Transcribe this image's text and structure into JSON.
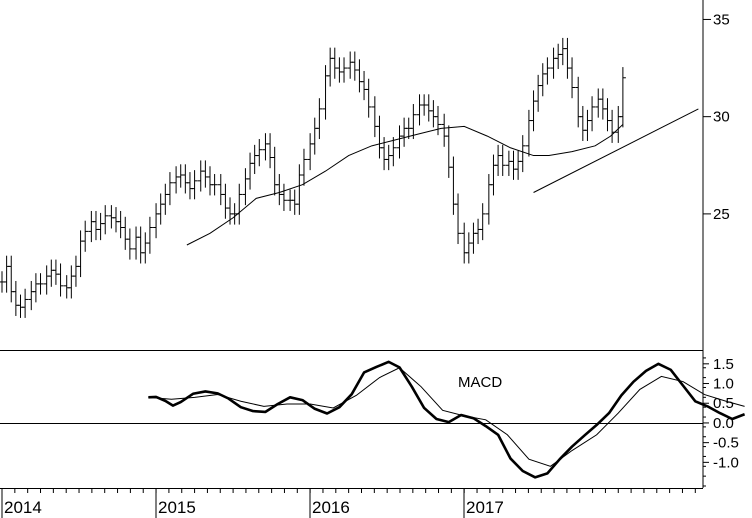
{
  "chart_data": [
    {
      "type": "ohlc",
      "panel": "price",
      "title": "",
      "xlabel": "",
      "ylabel": "",
      "ylim": [
        18,
        36
      ],
      "yticks": [
        25,
        30,
        35
      ],
      "x_range": [
        "2014-01",
        "2017-07"
      ],
      "x_ticks": [
        {
          "label": "2014",
          "date": 2014.0
        },
        {
          "label": "2015",
          "date": 2015.0
        },
        {
          "label": "2016",
          "date": 2016.0
        },
        {
          "label": "2017",
          "date": 2017.0
        }
      ],
      "series": [
        {
          "kind": "price_bars",
          "points": [
            [
              2014.0,
              21.5
            ],
            [
              2014.03,
              22.3
            ],
            [
              2014.06,
              21.0
            ],
            [
              2014.09,
              20.3
            ],
            [
              2014.12,
              20.2
            ],
            [
              2014.15,
              20.6
            ],
            [
              2014.19,
              21.0
            ],
            [
              2014.22,
              21.4
            ],
            [
              2014.25,
              21.4
            ],
            [
              2014.29,
              21.8
            ],
            [
              2014.32,
              22.1
            ],
            [
              2014.35,
              21.9
            ],
            [
              2014.38,
              21.3
            ],
            [
              2014.42,
              21.2
            ],
            [
              2014.45,
              21.8
            ],
            [
              2014.48,
              22.3
            ],
            [
              2014.51,
              23.6
            ],
            [
              2014.54,
              24.1
            ],
            [
              2014.58,
              24.6
            ],
            [
              2014.61,
              24.2
            ],
            [
              2014.64,
              24.5
            ],
            [
              2014.67,
              24.9
            ],
            [
              2014.71,
              24.8
            ],
            [
              2014.74,
              24.6
            ],
            [
              2014.77,
              24.3
            ],
            [
              2014.8,
              23.7
            ],
            [
              2014.83,
              23.2
            ],
            [
              2014.87,
              23.8
            ],
            [
              2014.9,
              23.0
            ],
            [
              2014.93,
              23.5
            ],
            [
              2014.96,
              24.3
            ],
            [
              2015.0,
              25.0
            ],
            [
              2015.03,
              25.5
            ],
            [
              2015.06,
              26.0
            ],
            [
              2015.09,
              26.6
            ],
            [
              2015.13,
              26.9
            ],
            [
              2015.16,
              27.0
            ],
            [
              2015.19,
              26.6
            ],
            [
              2015.22,
              26.3
            ],
            [
              2015.25,
              26.7
            ],
            [
              2015.29,
              27.2
            ],
            [
              2015.32,
              26.9
            ],
            [
              2015.35,
              26.5
            ],
            [
              2015.38,
              26.5
            ],
            [
              2015.42,
              26.0
            ],
            [
              2015.45,
              25.3
            ],
            [
              2015.48,
              25.0
            ],
            [
              2015.51,
              25.0
            ],
            [
              2015.54,
              26.0
            ],
            [
              2015.58,
              26.8
            ],
            [
              2015.61,
              27.6
            ],
            [
              2015.64,
              28.0
            ],
            [
              2015.67,
              28.3
            ],
            [
              2015.71,
              28.6
            ],
            [
              2015.74,
              27.9
            ],
            [
              2015.77,
              26.5
            ],
            [
              2015.8,
              26.0
            ],
            [
              2015.83,
              25.7
            ],
            [
              2015.87,
              25.7
            ],
            [
              2015.9,
              25.5
            ],
            [
              2015.93,
              27.0
            ],
            [
              2015.96,
              27.8
            ],
            [
              2016.0,
              28.6
            ],
            [
              2016.03,
              29.4
            ],
            [
              2016.06,
              30.4
            ],
            [
              2016.1,
              32.1
            ],
            [
              2016.13,
              33.0
            ],
            [
              2016.16,
              32.5
            ],
            [
              2016.19,
              32.3
            ],
            [
              2016.22,
              32.5
            ],
            [
              2016.26,
              32.8
            ],
            [
              2016.29,
              32.4
            ],
            [
              2016.32,
              31.8
            ],
            [
              2016.35,
              31.4
            ],
            [
              2016.38,
              30.5
            ],
            [
              2016.42,
              29.5
            ],
            [
              2016.45,
              28.4
            ],
            [
              2016.48,
              27.8
            ],
            [
              2016.51,
              28.0
            ],
            [
              2016.54,
              28.4
            ],
            [
              2016.58,
              29.0
            ],
            [
              2016.61,
              29.4
            ],
            [
              2016.64,
              29.4
            ],
            [
              2016.67,
              30.1
            ],
            [
              2016.71,
              30.6
            ],
            [
              2016.74,
              30.6
            ],
            [
              2016.77,
              30.3
            ],
            [
              2016.8,
              30.0
            ],
            [
              2016.83,
              29.6
            ],
            [
              2016.87,
              29.0
            ],
            [
              2016.9,
              27.4
            ],
            [
              2016.93,
              25.5
            ],
            [
              2016.96,
              24.0
            ],
            [
              2017.0,
              23.0
            ],
            [
              2017.03,
              23.5
            ],
            [
              2017.06,
              24.0
            ],
            [
              2017.09,
              24.2
            ],
            [
              2017.12,
              25.0
            ],
            [
              2017.16,
              26.5
            ],
            [
              2017.19,
              27.5
            ],
            [
              2017.22,
              28.0
            ],
            [
              2017.25,
              27.5
            ],
            [
              2017.29,
              27.7
            ],
            [
              2017.32,
              27.3
            ],
            [
              2017.35,
              27.7
            ],
            [
              2017.38,
              28.5
            ],
            [
              2017.42,
              29.8
            ],
            [
              2017.45,
              30.8
            ],
            [
              2017.48,
              31.6
            ],
            [
              2017.51,
              32.2
            ],
            [
              2017.54,
              32.5
            ],
            [
              2017.58,
              33.0
            ],
            [
              2017.61,
              33.2
            ],
            [
              2017.64,
              33.5
            ],
            [
              2017.67,
              32.5
            ],
            [
              2017.7,
              31.5
            ],
            [
              2017.74,
              30.0
            ],
            [
              2017.77,
              29.3
            ],
            [
              2017.8,
              29.8
            ],
            [
              2017.83,
              30.5
            ],
            [
              2017.87,
              30.9
            ],
            [
              2017.9,
              30.4
            ],
            [
              2017.93,
              29.8
            ],
            [
              2017.96,
              29.2
            ],
            [
              2018.0,
              30.0
            ],
            [
              2018.03,
              32.0
            ]
          ]
        },
        {
          "kind": "moving_average",
          "points": [
            [
              2015.2,
              23.4
            ],
            [
              2015.35,
              24.0
            ],
            [
              2015.5,
              24.8
            ],
            [
              2015.65,
              25.8
            ],
            [
              2015.8,
              26.1
            ],
            [
              2015.95,
              26.5
            ],
            [
              2016.1,
              27.2
            ],
            [
              2016.25,
              28.0
            ],
            [
              2016.4,
              28.5
            ],
            [
              2016.55,
              28.8
            ],
            [
              2016.7,
              29.1
            ],
            [
              2016.85,
              29.4
            ],
            [
              2017.0,
              29.5
            ],
            [
              2017.15,
              29.0
            ],
            [
              2017.3,
              28.4
            ],
            [
              2017.45,
              28.0
            ],
            [
              2017.55,
              28.0
            ],
            [
              2017.7,
              28.2
            ],
            [
              2017.85,
              28.5
            ],
            [
              2017.95,
              29.0
            ],
            [
              2018.03,
              29.6
            ]
          ]
        },
        {
          "kind": "trendline",
          "points": [
            [
              2017.45,
              26.1
            ],
            [
              2018.52,
              30.4
            ]
          ]
        }
      ]
    },
    {
      "type": "line",
      "panel": "macd",
      "title": "MACD",
      "xlabel": "",
      "ylabel": "",
      "ylim": [
        -1.6,
        1.8
      ],
      "yticks": [
        -1.0,
        -0.5,
        0.0,
        0.5,
        1.0,
        1.5
      ],
      "ytick_labels": [
        "-1.0",
        "-0.5",
        "0.0",
        "0.5",
        "1.0",
        "1.5"
      ],
      "zero_line": true,
      "series": [
        {
          "kind": "macd",
          "points": [
            [
              2014.95,
              0.65
            ],
            [
              2015.0,
              0.66
            ],
            [
              2015.06,
              0.56
            ],
            [
              2015.11,
              0.44
            ],
            [
              2015.16,
              0.53
            ],
            [
              2015.24,
              0.74
            ],
            [
              2015.32,
              0.8
            ],
            [
              2015.4,
              0.75
            ],
            [
              2015.47,
              0.62
            ],
            [
              2015.55,
              0.4
            ],
            [
              2015.63,
              0.3
            ],
            [
              2015.71,
              0.28
            ],
            [
              2015.79,
              0.48
            ],
            [
              2015.87,
              0.65
            ],
            [
              2015.95,
              0.58
            ],
            [
              2016.03,
              0.36
            ],
            [
              2016.11,
              0.24
            ],
            [
              2016.19,
              0.4
            ],
            [
              2016.27,
              0.73
            ],
            [
              2016.35,
              1.28
            ],
            [
              2016.43,
              1.42
            ],
            [
              2016.51,
              1.55
            ],
            [
              2016.58,
              1.41
            ],
            [
              2016.66,
              0.92
            ],
            [
              2016.74,
              0.38
            ],
            [
              2016.82,
              0.1
            ],
            [
              2016.9,
              0.02
            ],
            [
              2016.98,
              0.2
            ],
            [
              2017.06,
              0.12
            ],
            [
              2017.14,
              -0.08
            ],
            [
              2017.22,
              -0.3
            ],
            [
              2017.3,
              -0.9
            ],
            [
              2017.38,
              -1.22
            ],
            [
              2017.46,
              -1.38
            ],
            [
              2017.54,
              -1.28
            ],
            [
              2017.62,
              -0.92
            ],
            [
              2017.7,
              -0.6
            ],
            [
              2017.78,
              -0.32
            ],
            [
              2017.86,
              -0.05
            ],
            [
              2017.94,
              0.25
            ],
            [
              2018.02,
              0.7
            ],
            [
              2018.1,
              1.05
            ],
            [
              2018.18,
              1.32
            ],
            [
              2018.26,
              1.5
            ],
            [
              2018.34,
              1.35
            ],
            [
              2018.42,
              0.95
            ],
            [
              2018.5,
              0.55
            ],
            [
              2018.58,
              0.42
            ],
            [
              2018.66,
              0.25
            ],
            [
              2018.74,
              0.1
            ],
            [
              2018.82,
              0.22
            ]
          ]
        },
        {
          "kind": "signal",
          "points": [
            [
              2014.95,
              0.65
            ],
            [
              2015.1,
              0.6
            ],
            [
              2015.25,
              0.65
            ],
            [
              2015.4,
              0.72
            ],
            [
              2015.55,
              0.55
            ],
            [
              2015.7,
              0.42
            ],
            [
              2015.85,
              0.48
            ],
            [
              2016.0,
              0.48
            ],
            [
              2016.15,
              0.38
            ],
            [
              2016.3,
              0.7
            ],
            [
              2016.45,
              1.15
            ],
            [
              2016.58,
              1.4
            ],
            [
              2016.72,
              0.92
            ],
            [
              2016.86,
              0.32
            ],
            [
              2017.0,
              0.18
            ],
            [
              2017.14,
              0.08
            ],
            [
              2017.28,
              -0.3
            ],
            [
              2017.42,
              -0.92
            ],
            [
              2017.56,
              -1.1
            ],
            [
              2017.7,
              -0.7
            ],
            [
              2017.86,
              -0.3
            ],
            [
              2018.0,
              0.25
            ],
            [
              2018.14,
              0.85
            ],
            [
              2018.28,
              1.18
            ],
            [
              2018.42,
              1.05
            ],
            [
              2018.56,
              0.72
            ],
            [
              2018.7,
              0.55
            ],
            [
              2018.82,
              0.42
            ]
          ]
        }
      ]
    }
  ]
}
